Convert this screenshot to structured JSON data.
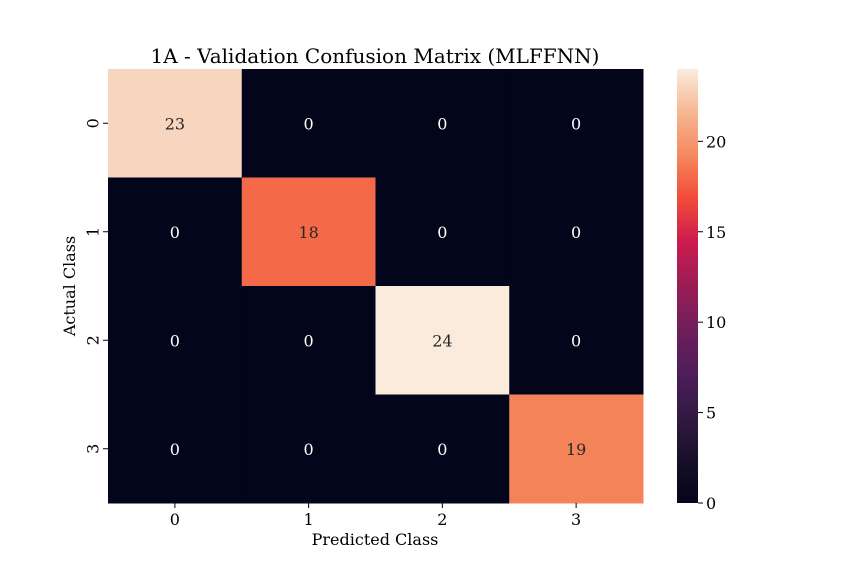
{
  "chart_data": {
    "type": "heatmap",
    "title": "1A - Validation Confusion Matrix (MLFFNN)",
    "xlabel": "Predicted Class",
    "ylabel": "Actual Class",
    "x_categories": [
      "0",
      "1",
      "2",
      "3"
    ],
    "y_categories": [
      "0",
      "1",
      "2",
      "3"
    ],
    "values": [
      [
        23,
        0,
        0,
        0
      ],
      [
        0,
        18,
        0,
        0
      ],
      [
        0,
        0,
        24,
        0
      ],
      [
        0,
        0,
        0,
        19
      ]
    ],
    "colormap": "rocket",
    "colorbar": {
      "range": [
        0,
        24
      ],
      "ticks": [
        0,
        5,
        10,
        15,
        20
      ]
    },
    "grid": false
  }
}
